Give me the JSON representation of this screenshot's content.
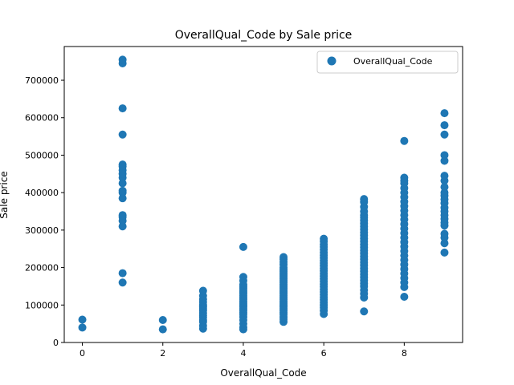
{
  "chart_data": {
    "type": "scatter",
    "title": "OverallQual_Code by Sale price",
    "xlabel": "OverallQual_Code",
    "ylabel": "Sale price",
    "xlim": [
      -0.45,
      9.45
    ],
    "ylim": [
      0,
      790000
    ],
    "xticks": [
      0,
      2,
      4,
      6,
      8
    ],
    "xtick_labels": [
      "0",
      "2",
      "4",
      "6",
      "8"
    ],
    "yticks": [
      0,
      100000,
      200000,
      300000,
      400000,
      500000,
      600000,
      700000
    ],
    "ytick_labels": [
      "0",
      "100000",
      "200000",
      "300000",
      "400000",
      "500000",
      "600000",
      "700000"
    ],
    "grid": false,
    "legend_position": "top-right",
    "series": [
      {
        "name": "OverallQual_Code",
        "color": "#1f77b4",
        "points": [
          [
            0,
            40000
          ],
          [
            0,
            61000
          ],
          [
            1,
            160000
          ],
          [
            1,
            185000
          ],
          [
            1,
            310000
          ],
          [
            1,
            325000
          ],
          [
            1,
            335000
          ],
          [
            1,
            340000
          ],
          [
            1,
            385000
          ],
          [
            1,
            400000
          ],
          [
            1,
            405000
          ],
          [
            1,
            425000
          ],
          [
            1,
            440000
          ],
          [
            1,
            450000
          ],
          [
            1,
            460000
          ],
          [
            1,
            470000
          ],
          [
            1,
            475000
          ],
          [
            1,
            555000
          ],
          [
            1,
            625000
          ],
          [
            1,
            745000
          ],
          [
            1,
            755000
          ],
          [
            2,
            35000
          ],
          [
            2,
            60000
          ],
          [
            3,
            37000
          ],
          [
            3,
            45000
          ],
          [
            3,
            55000
          ],
          [
            3,
            60000
          ],
          [
            3,
            67000
          ],
          [
            3,
            72000
          ],
          [
            3,
            79000
          ],
          [
            3,
            85000
          ],
          [
            3,
            90000
          ],
          [
            3,
            95000
          ],
          [
            3,
            100000
          ],
          [
            3,
            108000
          ],
          [
            3,
            115000
          ],
          [
            3,
            125000
          ],
          [
            3,
            138000
          ],
          [
            4,
            35000
          ],
          [
            4,
            40000
          ],
          [
            4,
            50000
          ],
          [
            4,
            60000
          ],
          [
            4,
            68000
          ],
          [
            4,
            75000
          ],
          [
            4,
            80000
          ],
          [
            4,
            85000
          ],
          [
            4,
            90000
          ],
          [
            4,
            95000
          ],
          [
            4,
            100000
          ],
          [
            4,
            105000
          ],
          [
            4,
            110000
          ],
          [
            4,
            115000
          ],
          [
            4,
            120000
          ],
          [
            4,
            125000
          ],
          [
            4,
            130000
          ],
          [
            4,
            135000
          ],
          [
            4,
            140000
          ],
          [
            4,
            145000
          ],
          [
            4,
            150000
          ],
          [
            4,
            155000
          ],
          [
            4,
            165000
          ],
          [
            4,
            175000
          ],
          [
            4,
            255000
          ],
          [
            5,
            55000
          ],
          [
            5,
            62000
          ],
          [
            5,
            68000
          ],
          [
            5,
            75000
          ],
          [
            5,
            80000
          ],
          [
            5,
            85000
          ],
          [
            5,
            90000
          ],
          [
            5,
            95000
          ],
          [
            5,
            100000
          ],
          [
            5,
            105000
          ],
          [
            5,
            110000
          ],
          [
            5,
            115000
          ],
          [
            5,
            120000
          ],
          [
            5,
            125000
          ],
          [
            5,
            130000
          ],
          [
            5,
            135000
          ],
          [
            5,
            140000
          ],
          [
            5,
            145000
          ],
          [
            5,
            150000
          ],
          [
            5,
            155000
          ],
          [
            5,
            160000
          ],
          [
            5,
            165000
          ],
          [
            5,
            170000
          ],
          [
            5,
            175000
          ],
          [
            5,
            180000
          ],
          [
            5,
            185000
          ],
          [
            5,
            190000
          ],
          [
            5,
            195000
          ],
          [
            5,
            200000
          ],
          [
            5,
            208000
          ],
          [
            5,
            215000
          ],
          [
            5,
            222000
          ],
          [
            5,
            228000
          ],
          [
            6,
            76000
          ],
          [
            6,
            85000
          ],
          [
            6,
            93000
          ],
          [
            6,
            100000
          ],
          [
            6,
            107000
          ],
          [
            6,
            114000
          ],
          [
            6,
            121000
          ],
          [
            6,
            128000
          ],
          [
            6,
            135000
          ],
          [
            6,
            142000
          ],
          [
            6,
            149000
          ],
          [
            6,
            156000
          ],
          [
            6,
            163000
          ],
          [
            6,
            170000
          ],
          [
            6,
            177000
          ],
          [
            6,
            184000
          ],
          [
            6,
            191000
          ],
          [
            6,
            198000
          ],
          [
            6,
            205000
          ],
          [
            6,
            212000
          ],
          [
            6,
            219000
          ],
          [
            6,
            226000
          ],
          [
            6,
            233000
          ],
          [
            6,
            240000
          ],
          [
            6,
            248000
          ],
          [
            6,
            255000
          ],
          [
            6,
            262000
          ],
          [
            6,
            270000
          ],
          [
            6,
            277000
          ],
          [
            7,
            83000
          ],
          [
            7,
            120000
          ],
          [
            7,
            130000
          ],
          [
            7,
            140000
          ],
          [
            7,
            150000
          ],
          [
            7,
            158000
          ],
          [
            7,
            166000
          ],
          [
            7,
            174000
          ],
          [
            7,
            182000
          ],
          [
            7,
            190000
          ],
          [
            7,
            198000
          ],
          [
            7,
            206000
          ],
          [
            7,
            214000
          ],
          [
            7,
            222000
          ],
          [
            7,
            230000
          ],
          [
            7,
            238000
          ],
          [
            7,
            246000
          ],
          [
            7,
            254000
          ],
          [
            7,
            262000
          ],
          [
            7,
            270000
          ],
          [
            7,
            278000
          ],
          [
            7,
            286000
          ],
          [
            7,
            294000
          ],
          [
            7,
            302000
          ],
          [
            7,
            310000
          ],
          [
            7,
            318000
          ],
          [
            7,
            326000
          ],
          [
            7,
            334000
          ],
          [
            7,
            340000
          ],
          [
            7,
            350000
          ],
          [
            7,
            362000
          ],
          [
            7,
            375000
          ],
          [
            7,
            383000
          ],
          [
            8,
            122000
          ],
          [
            8,
            148000
          ],
          [
            8,
            160000
          ],
          [
            8,
            172000
          ],
          [
            8,
            184000
          ],
          [
            8,
            196000
          ],
          [
            8,
            208000
          ],
          [
            8,
            220000
          ],
          [
            8,
            232000
          ],
          [
            8,
            244000
          ],
          [
            8,
            256000
          ],
          [
            8,
            268000
          ],
          [
            8,
            280000
          ],
          [
            8,
            292000
          ],
          [
            8,
            304000
          ],
          [
            8,
            316000
          ],
          [
            8,
            328000
          ],
          [
            8,
            340000
          ],
          [
            8,
            352000
          ],
          [
            8,
            364000
          ],
          [
            8,
            376000
          ],
          [
            8,
            388000
          ],
          [
            8,
            400000
          ],
          [
            8,
            412000
          ],
          [
            8,
            425000
          ],
          [
            8,
            432000
          ],
          [
            8,
            440000
          ],
          [
            8,
            538000
          ],
          [
            9,
            240000
          ],
          [
            9,
            265000
          ],
          [
            9,
            280000
          ],
          [
            9,
            290000
          ],
          [
            9,
            312000
          ],
          [
            9,
            320000
          ],
          [
            9,
            330000
          ],
          [
            9,
            340000
          ],
          [
            9,
            350000
          ],
          [
            9,
            360000
          ],
          [
            9,
            372000
          ],
          [
            9,
            382000
          ],
          [
            9,
            392000
          ],
          [
            9,
            400000
          ],
          [
            9,
            415000
          ],
          [
            9,
            432000
          ],
          [
            9,
            445000
          ],
          [
            9,
            485000
          ],
          [
            9,
            500000
          ],
          [
            9,
            555000
          ],
          [
            9,
            580000
          ],
          [
            9,
            612000
          ]
        ]
      }
    ]
  }
}
